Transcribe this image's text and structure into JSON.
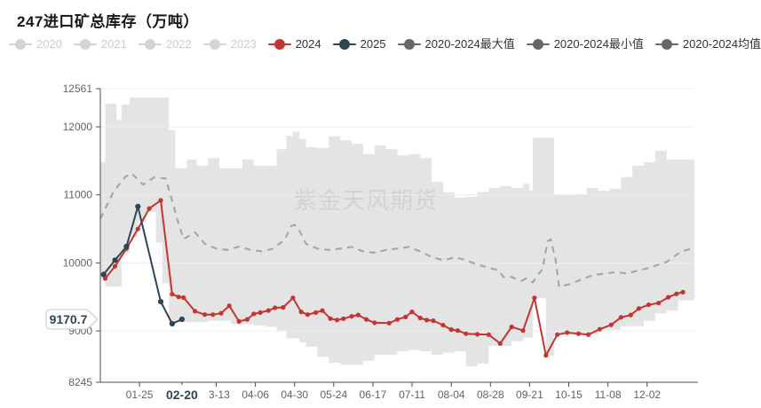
{
  "title": "247进口矿总库存（万吨）",
  "watermark": "紫金天风期货",
  "colors": {
    "red_2024": "#c23531",
    "navy_2025": "#2f4554",
    "stat_gray": "#666666",
    "disabled_gray": "#cccccc",
    "band_fill": "#e4e4e4",
    "mean_dash": "#a3a3a3",
    "gridline": "#ececec",
    "axis_line": "#4d4d4d",
    "axis_text": "#5f6368",
    "watermark_gray": "#d2d2d2",
    "pointer_text": "#2f4554",
    "pointer_border": "#c4c4c4"
  },
  "legend": {
    "items": [
      {
        "label": "2020",
        "color": "#d4d4d4",
        "text_color": "#cccccc",
        "active": false
      },
      {
        "label": "2021",
        "color": "#d4d4d4",
        "text_color": "#cccccc",
        "active": false
      },
      {
        "label": "2022",
        "color": "#d4d4d4",
        "text_color": "#cccccc",
        "active": false
      },
      {
        "label": "2023",
        "color": "#d4d4d4",
        "text_color": "#cccccc",
        "active": false
      },
      {
        "label": "2024",
        "color": "#c23531",
        "text_color": "#333333",
        "active": true
      },
      {
        "label": "2025",
        "color": "#2f4554",
        "text_color": "#333333",
        "active": true
      },
      {
        "label": "2020-2024最大值",
        "color": "#666666",
        "text_color": "#333333",
        "active": true
      },
      {
        "label": "2020-2024最小值",
        "color": "#666666",
        "text_color": "#333333",
        "active": true
      },
      {
        "label": "2020-2024均值",
        "color": "#666666",
        "text_color": "#333333",
        "active": true
      }
    ]
  },
  "chart_data": {
    "type": "line",
    "title": "247进口矿总库存（万吨）",
    "ylabel": "万吨",
    "ylim": [
      8245,
      12561
    ],
    "y_ticks": [
      8245,
      9000,
      10000,
      11000,
      12000,
      12561
    ],
    "x_ticks": [
      "01-25",
      "02-20",
      "03-13",
      "04-06",
      "04-30",
      "05-24",
      "06-17",
      "07-11",
      "08-04",
      "08-28",
      "09-21",
      "10-15",
      "11-08",
      "12-02"
    ],
    "axis_pointer": {
      "x_label": "02-20",
      "y_value": 9170.7,
      "y_label": "9170.7"
    },
    "grid": true,
    "legend_position": "top",
    "band": {
      "name": "2020-2024最大值/最小值区间",
      "points": [
        [
          "01-01",
          9760,
          11480
        ],
        [
          "01-04",
          9650,
          12340
        ],
        [
          "01-11",
          9650,
          12100
        ],
        [
          "01-14",
          10150,
          12330
        ],
        [
          "01-19",
          10380,
          12430
        ],
        [
          "01-24",
          10600,
          12430
        ],
        [
          "01-29",
          10750,
          12430
        ],
        [
          "02-04",
          10300,
          12430
        ],
        [
          "02-08",
          9700,
          12430
        ],
        [
          "02-12",
          9100,
          11950
        ],
        [
          "02-16",
          9130,
          11390
        ],
        [
          "02-23",
          9130,
          11520
        ],
        [
          "03-01",
          9130,
          11430
        ],
        [
          "03-08",
          9150,
          11540
        ],
        [
          "03-15",
          9150,
          11390
        ],
        [
          "03-22",
          9100,
          11390
        ],
        [
          "03-29",
          9100,
          11520
        ],
        [
          "04-05",
          9080,
          11430
        ],
        [
          "04-12",
          9060,
          11430
        ],
        [
          "04-19",
          9005,
          11670
        ],
        [
          "04-25",
          8890,
          11870
        ],
        [
          "04-29",
          8890,
          11930
        ],
        [
          "05-03",
          8830,
          11820
        ],
        [
          "05-07",
          8770,
          11700
        ],
        [
          "05-14",
          8620,
          11690
        ],
        [
          "05-21",
          8530,
          11860
        ],
        [
          "05-28",
          8500,
          11800
        ],
        [
          "06-04",
          8500,
          11750
        ],
        [
          "06-11",
          8560,
          11600
        ],
        [
          "06-18",
          8650,
          11730
        ],
        [
          "06-25",
          8650,
          11670
        ],
        [
          "07-02",
          8700,
          11580
        ],
        [
          "07-09",
          8720,
          11600
        ],
        [
          "07-16",
          8700,
          11540
        ],
        [
          "07-23",
          8650,
          11190
        ],
        [
          "07-30",
          8680,
          11040
        ],
        [
          "08-06",
          8700,
          10960
        ],
        [
          "08-13",
          8480,
          10970
        ],
        [
          "08-20",
          8520,
          11040
        ],
        [
          "08-27",
          8780,
          11100
        ],
        [
          "09-03",
          8780,
          11130
        ],
        [
          "09-10",
          8850,
          11100
        ],
        [
          "09-17",
          8900,
          11160
        ],
        [
          "09-21",
          8900,
          11060
        ],
        [
          "09-23",
          9480,
          11840
        ],
        [
          "10-01",
          8640,
          11840
        ],
        [
          "10-06",
          8940,
          11000
        ],
        [
          "10-12",
          8975,
          10990
        ],
        [
          "10-19",
          8960,
          11010
        ],
        [
          "10-26",
          8945,
          11100
        ],
        [
          "11-02",
          9020,
          11060
        ],
        [
          "11-09",
          9020,
          11090
        ],
        [
          "11-16",
          9070,
          11260
        ],
        [
          "11-23",
          9070,
          11430
        ],
        [
          "11-30",
          9150,
          11480
        ],
        [
          "12-07",
          9260,
          11650
        ],
        [
          "12-14",
          9300,
          11520
        ],
        [
          "12-21",
          9450,
          11520
        ],
        [
          "12-31",
          9450,
          11520
        ]
      ]
    },
    "mean": {
      "name": "2020-2024均值",
      "points": [
        [
          "01-01",
          10650
        ],
        [
          "01-09",
          11040
        ],
        [
          "01-16",
          11260
        ],
        [
          "01-20",
          11320
        ],
        [
          "01-27",
          11150
        ],
        [
          "02-03",
          11260
        ],
        [
          "02-10",
          11240
        ],
        [
          "02-13",
          11000
        ],
        [
          "02-17",
          10650
        ],
        [
          "02-21",
          10350
        ],
        [
          "02-28",
          10450
        ],
        [
          "03-06",
          10280
        ],
        [
          "03-13",
          10210
        ],
        [
          "03-20",
          10190
        ],
        [
          "03-27",
          10240
        ],
        [
          "04-03",
          10190
        ],
        [
          "04-10",
          10170
        ],
        [
          "04-17",
          10210
        ],
        [
          "04-24",
          10345
        ],
        [
          "04-28",
          10540
        ],
        [
          "04-30",
          10560
        ],
        [
          "05-03",
          10475
        ],
        [
          "05-07",
          10280
        ],
        [
          "05-14",
          10210
        ],
        [
          "05-21",
          10190
        ],
        [
          "05-28",
          10210
        ],
        [
          "06-04",
          10235
        ],
        [
          "06-11",
          10170
        ],
        [
          "06-18",
          10150
        ],
        [
          "06-25",
          10190
        ],
        [
          "07-02",
          10210
        ],
        [
          "07-09",
          10235
        ],
        [
          "07-16",
          10170
        ],
        [
          "07-23",
          10085
        ],
        [
          "07-30",
          10040
        ],
        [
          "08-03",
          10060
        ],
        [
          "08-06",
          10085
        ],
        [
          "08-13",
          10040
        ],
        [
          "08-20",
          9975
        ],
        [
          "08-27",
          9930
        ],
        [
          "09-02",
          9890
        ],
        [
          "09-05",
          9790
        ],
        [
          "09-09",
          9800
        ],
        [
          "09-16",
          9735
        ],
        [
          "09-19",
          9770
        ],
        [
          "09-23",
          9715
        ],
        [
          "09-26",
          9820
        ],
        [
          "09-29",
          9910
        ],
        [
          "10-02",
          10320
        ],
        [
          "10-04",
          10345
        ],
        [
          "10-07",
          10040
        ],
        [
          "10-09",
          9650
        ],
        [
          "10-16",
          9690
        ],
        [
          "10-23",
          9760
        ],
        [
          "10-30",
          9820
        ],
        [
          "11-06",
          9845
        ],
        [
          "11-13",
          9865
        ],
        [
          "11-20",
          9845
        ],
        [
          "11-27",
          9890
        ],
        [
          "12-04",
          9930
        ],
        [
          "12-09",
          9975
        ],
        [
          "12-14",
          10015
        ],
        [
          "12-18",
          10085
        ],
        [
          "12-22",
          10150
        ],
        [
          "12-26",
          10190
        ],
        [
          "12-30",
          10210
        ]
      ]
    },
    "series": [
      {
        "name": "2024",
        "points": [
          [
            "01-04",
            9770
          ],
          [
            "01-10",
            9950
          ],
          [
            "01-17",
            10210
          ],
          [
            "01-24",
            10500
          ],
          [
            "01-31",
            10800
          ],
          [
            "02-07",
            10920
          ],
          [
            "02-14",
            9540
          ],
          [
            "02-18",
            9500
          ],
          [
            "02-21",
            9490
          ],
          [
            "02-28",
            9290
          ],
          [
            "03-06",
            9240
          ],
          [
            "03-11",
            9240
          ],
          [
            "03-16",
            9260
          ],
          [
            "03-21",
            9370
          ],
          [
            "03-27",
            9140
          ],
          [
            "04-01",
            9170
          ],
          [
            "04-05",
            9250
          ],
          [
            "04-09",
            9270
          ],
          [
            "04-14",
            9300
          ],
          [
            "04-18",
            9340
          ],
          [
            "04-23",
            9345
          ],
          [
            "04-29",
            9485
          ],
          [
            "05-04",
            9280
          ],
          [
            "05-08",
            9240
          ],
          [
            "05-13",
            9270
          ],
          [
            "05-17",
            9300
          ],
          [
            "05-22",
            9180
          ],
          [
            "05-26",
            9160
          ],
          [
            "05-30",
            9180
          ],
          [
            "06-04",
            9215
          ],
          [
            "06-08",
            9235
          ],
          [
            "06-13",
            9170
          ],
          [
            "06-18",
            9120
          ],
          [
            "06-27",
            9115
          ],
          [
            "07-02",
            9170
          ],
          [
            "07-07",
            9205
          ],
          [
            "07-11",
            9280
          ],
          [
            "07-16",
            9190
          ],
          [
            "07-20",
            9160
          ],
          [
            "07-24",
            9150
          ],
          [
            "07-30",
            9085
          ],
          [
            "08-04",
            9020
          ],
          [
            "08-08",
            9005
          ],
          [
            "08-13",
            8960
          ],
          [
            "08-20",
            8950
          ],
          [
            "08-27",
            8945
          ],
          [
            "09-03",
            8815
          ],
          [
            "09-10",
            9060
          ],
          [
            "09-17",
            9005
          ],
          [
            "09-24",
            9485
          ],
          [
            "10-01",
            8640
          ],
          [
            "10-08",
            8945
          ],
          [
            "10-14",
            8975
          ],
          [
            "10-21",
            8960
          ],
          [
            "10-27",
            8945
          ],
          [
            "11-03",
            9025
          ],
          [
            "11-10",
            9090
          ],
          [
            "11-16",
            9200
          ],
          [
            "11-22",
            9235
          ],
          [
            "11-27",
            9330
          ],
          [
            "12-03",
            9385
          ],
          [
            "12-09",
            9410
          ],
          [
            "12-15",
            9495
          ],
          [
            "12-20",
            9545
          ],
          [
            "12-24",
            9570
          ]
        ]
      },
      {
        "name": "2025",
        "points": [
          [
            "01-03",
            9830
          ],
          [
            "01-10",
            10040
          ],
          [
            "01-17",
            10240
          ],
          [
            "01-24",
            10830
          ],
          [
            "02-07",
            9430
          ],
          [
            "02-14",
            9105
          ],
          [
            "02-20",
            9170.7
          ]
        ]
      }
    ]
  }
}
